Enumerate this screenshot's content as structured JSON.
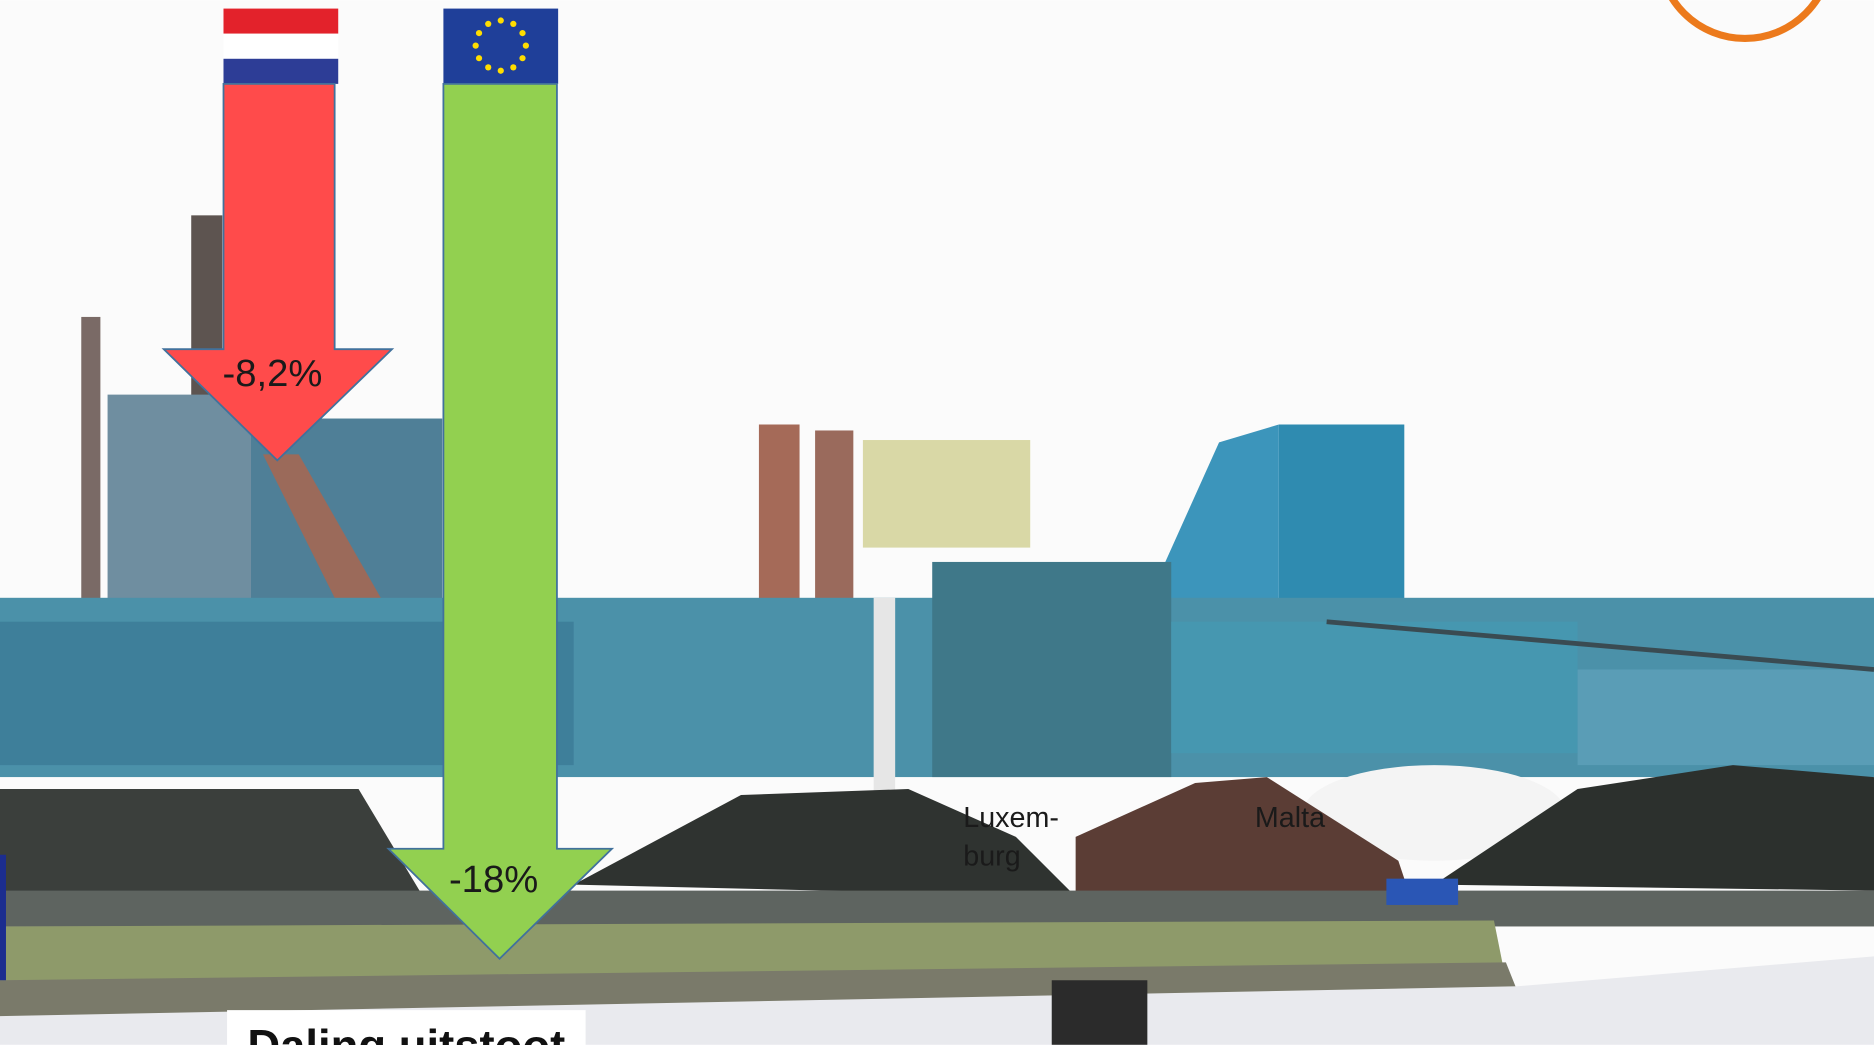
{
  "slide": {
    "title": "Daling uitstoot",
    "arrows": [
      {
        "label": "-8,2%"
      },
      {
        "label": "-18%"
      }
    ],
    "photo_labels": [
      "Luxem-",
      "burg",
      "Malta"
    ]
  }
}
